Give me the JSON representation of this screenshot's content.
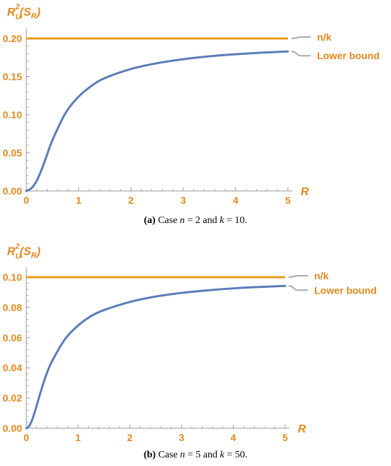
{
  "chart_data": [
    {
      "type": "line",
      "ylabel": "R_U^2(S_R)",
      "xlabel": "R",
      "xlim": [
        0,
        5
      ],
      "ylim": [
        0,
        0.2
      ],
      "x_ticks": [
        "0",
        "1",
        "2",
        "3",
        "4",
        "5"
      ],
      "y_ticks": [
        "0.00",
        "0.05",
        "0.10",
        "0.15",
        "0.20"
      ],
      "n": 2,
      "k": 10,
      "series": [
        {
          "name": "n/k",
          "color": "#E89B1A",
          "x": [
            0,
            5
          ],
          "y": [
            0.2,
            0.2
          ]
        },
        {
          "name": "Lower bound",
          "color": "#5B7DB8",
          "x": [
            0,
            0.1,
            0.2,
            0.3,
            0.4,
            0.5,
            0.75,
            1,
            1.25,
            1.5,
            2,
            2.5,
            3,
            3.5,
            4,
            4.5,
            5
          ],
          "y": [
            0,
            0.0038,
            0.0135,
            0.0294,
            0.0482,
            0.0667,
            0.1022,
            0.1237,
            0.138,
            0.148,
            0.16,
            0.1676,
            0.1728,
            0.1766,
            0.1793,
            0.1814,
            0.183
          ]
        }
      ],
      "caption": {
        "label": "(a)",
        "pre": " Case ",
        "var1": "n",
        "mid": " = 2 and ",
        "var2": "k",
        "post": " = 10."
      }
    },
    {
      "type": "line",
      "ylabel": "R_U^2(S_R)",
      "xlabel": "R",
      "xlim": [
        0,
        5
      ],
      "ylim": [
        0,
        0.1
      ],
      "x_ticks": [
        "0",
        "1",
        "2",
        "3",
        "4",
        "5"
      ],
      "y_ticks": [
        "0.00",
        "0.02",
        "0.04",
        "0.06",
        "0.08",
        "0.10"
      ],
      "n": 5,
      "k": 50,
      "series": [
        {
          "name": "n/k",
          "color": "#E89B1A",
          "x": [
            0,
            5
          ],
          "y": [
            0.1,
            0.1
          ]
        },
        {
          "name": "Lower bound",
          "color": "#5B7DB8",
          "x": [
            0,
            0.05,
            0.1,
            0.15,
            0.2,
            0.3,
            0.4,
            0.5,
            0.75,
            1,
            1.25,
            1.5,
            2,
            2.5,
            3,
            3.5,
            4,
            4.5,
            5
          ],
          "y": [
            0,
            0.0012,
            0.0044,
            0.0093,
            0.015,
            0.0265,
            0.0367,
            0.0446,
            0.0591,
            0.068,
            0.0742,
            0.0782,
            0.0836,
            0.0872,
            0.0896,
            0.0913,
            0.0926,
            0.0935,
            0.0942
          ]
        }
      ],
      "caption": {
        "label": "(b)",
        "pre": " Case ",
        "var1": "n",
        "mid": " = 5 and ",
        "var2": "k",
        "post": " = 50."
      }
    }
  ]
}
